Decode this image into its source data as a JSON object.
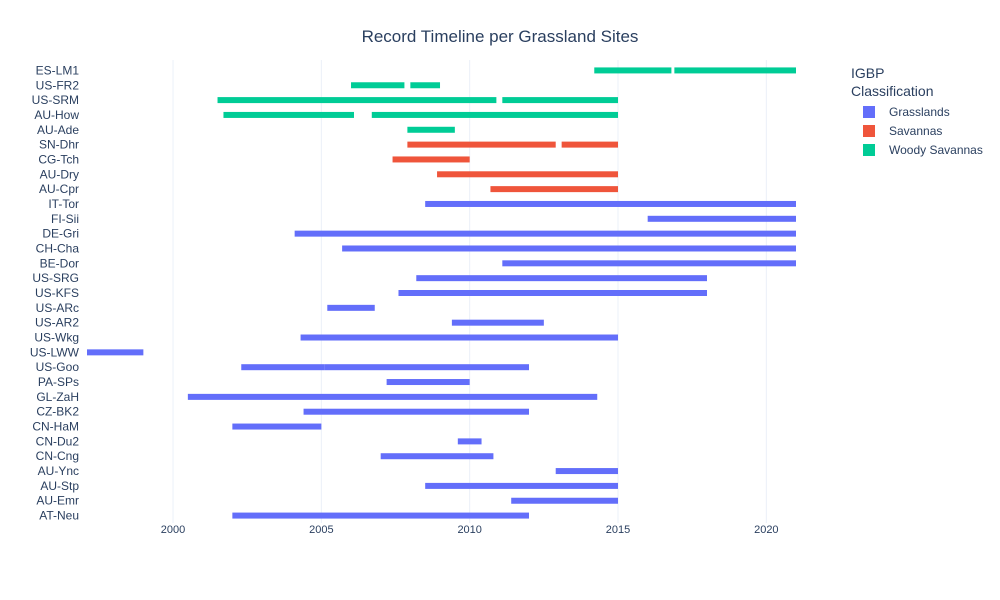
{
  "chart_data": {
    "type": "bar",
    "orientation": "horizontal-timeline",
    "title": "Record Timeline per Grassland Sites",
    "xlabel": "",
    "ylabel": "",
    "xlim": [
      1997.1,
      2021.0
    ],
    "x_ticks": [
      "2000",
      "2005",
      "2010",
      "2015",
      "2020"
    ],
    "grid": true,
    "legend": {
      "title_line1": "IGBP",
      "title_line2": "Classification",
      "placement": "right",
      "entries": [
        {
          "name": "Grasslands",
          "color": "#636efa"
        },
        {
          "name": "Savannas",
          "color": "#ef553b"
        },
        {
          "name": "Woody Savannas",
          "color": "#00cc96"
        }
      ]
    },
    "sites": [
      {
        "name": "ES-LM1",
        "class": "Woody Savannas",
        "periods": [
          [
            2014.2,
            2016.8
          ],
          [
            2016.9,
            2021.0
          ]
        ]
      },
      {
        "name": "US-FR2",
        "class": "Woody Savannas",
        "periods": [
          [
            2006.0,
            2007.8
          ],
          [
            2008.0,
            2009.0
          ]
        ]
      },
      {
        "name": "US-SRM",
        "class": "Woody Savannas",
        "periods": [
          [
            2001.5,
            2010.9
          ],
          [
            2011.1,
            2015.0
          ]
        ]
      },
      {
        "name": "AU-How",
        "class": "Woody Savannas",
        "periods": [
          [
            2001.7,
            2006.1
          ],
          [
            2006.7,
            2015.0
          ]
        ]
      },
      {
        "name": "AU-Ade",
        "class": "Woody Savannas",
        "periods": [
          [
            2007.9,
            2009.5
          ]
        ]
      },
      {
        "name": "SN-Dhr",
        "class": "Savannas",
        "periods": [
          [
            2007.9,
            2012.9
          ],
          [
            2013.1,
            2015.0
          ]
        ]
      },
      {
        "name": "CG-Tch",
        "class": "Savannas",
        "periods": [
          [
            2007.4,
            2010.0
          ]
        ]
      },
      {
        "name": "AU-Dry",
        "class": "Savannas",
        "periods": [
          [
            2008.9,
            2015.0
          ]
        ]
      },
      {
        "name": "AU-Cpr",
        "class": "Savannas",
        "periods": [
          [
            2010.7,
            2015.0
          ]
        ]
      },
      {
        "name": "IT-Tor",
        "class": "Grasslands",
        "periods": [
          [
            2008.5,
            2021.0
          ]
        ]
      },
      {
        "name": "FI-Sii",
        "class": "Grasslands",
        "periods": [
          [
            2016.0,
            2021.0
          ]
        ]
      },
      {
        "name": "DE-Gri",
        "class": "Grasslands",
        "periods": [
          [
            2004.1,
            2021.0
          ]
        ]
      },
      {
        "name": "CH-Cha",
        "class": "Grasslands",
        "periods": [
          [
            2005.7,
            2021.0
          ]
        ]
      },
      {
        "name": "BE-Dor",
        "class": "Grasslands",
        "periods": [
          [
            2011.1,
            2021.0
          ]
        ]
      },
      {
        "name": "US-SRG",
        "class": "Grasslands",
        "periods": [
          [
            2008.2,
            2018.0
          ]
        ]
      },
      {
        "name": "US-KFS",
        "class": "Grasslands",
        "periods": [
          [
            2007.6,
            2018.0
          ]
        ]
      },
      {
        "name": "US-ARc",
        "class": "Grasslands",
        "periods": [
          [
            2005.2,
            2006.8
          ]
        ]
      },
      {
        "name": "US-AR2",
        "class": "Grasslands",
        "periods": [
          [
            2009.4,
            2012.5
          ]
        ]
      },
      {
        "name": "US-Wkg",
        "class": "Grasslands",
        "periods": [
          [
            2004.3,
            2015.0
          ]
        ]
      },
      {
        "name": "US-LWW",
        "class": "Grasslands",
        "periods": [
          [
            1997.1,
            1999.0
          ]
        ]
      },
      {
        "name": "US-Goo",
        "class": "Grasslands",
        "periods": [
          [
            2002.3,
            2005.1
          ],
          [
            2005.1,
            2012.0
          ]
        ]
      },
      {
        "name": "PA-SPs",
        "class": "Grasslands",
        "periods": [
          [
            2007.2,
            2010.0
          ]
        ]
      },
      {
        "name": "GL-ZaH",
        "class": "Grasslands",
        "periods": [
          [
            2000.5,
            2014.3
          ]
        ]
      },
      {
        "name": "CZ-BK2",
        "class": "Grasslands",
        "periods": [
          [
            2004.4,
            2012.0
          ]
        ]
      },
      {
        "name": "CN-HaM",
        "class": "Grasslands",
        "periods": [
          [
            2002.0,
            2005.0
          ]
        ]
      },
      {
        "name": "CN-Du2",
        "class": "Grasslands",
        "periods": [
          [
            2009.6,
            2010.4
          ]
        ]
      },
      {
        "name": "CN-Cng",
        "class": "Grasslands",
        "periods": [
          [
            2007.0,
            2010.8
          ]
        ]
      },
      {
        "name": "AU-Ync",
        "class": "Grasslands",
        "periods": [
          [
            2012.9,
            2015.0
          ]
        ]
      },
      {
        "name": "AU-Stp",
        "class": "Grasslands",
        "periods": [
          [
            2008.5,
            2015.0
          ]
        ]
      },
      {
        "name": "AU-Emr",
        "class": "Grasslands",
        "periods": [
          [
            2011.4,
            2015.0
          ]
        ]
      },
      {
        "name": "AT-Neu",
        "class": "Grasslands",
        "periods": [
          [
            2002.0,
            2012.0
          ]
        ]
      }
    ]
  }
}
